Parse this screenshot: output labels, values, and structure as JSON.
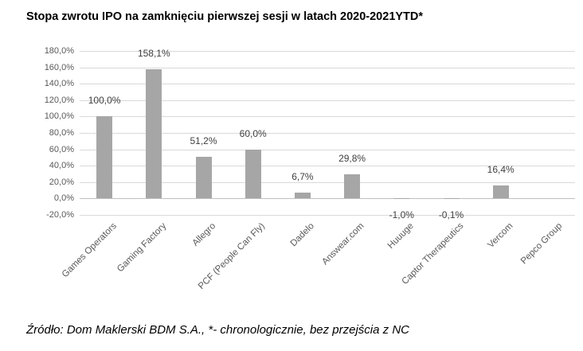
{
  "title": "Stopa zwrotu IPO na zamknięciu pierwszej sesji w latach 2020-2021YTD*",
  "footer": "Źródło: Dom Maklerski BDM S.A., *- chronologicznie, bez przejścia z NC",
  "chart_data": {
    "type": "bar",
    "title": "Stopa zwrotu IPO na zamknięciu pierwszej sesji w latach 2020-2021YTD*",
    "categories": [
      "Games Operators",
      "Gaming Factory",
      "Allegro",
      "PCF (People Can Fly)",
      "Dadelo",
      "Answear.com",
      "Huuuge",
      "Captor Therapeutics",
      "Vercom",
      "Pepco Group"
    ],
    "values": [
      100.0,
      158.1,
      51.2,
      60.0,
      6.7,
      29.8,
      -1.0,
      -0.1,
      16.4,
      null
    ],
    "value_labels": [
      "100,0%",
      "158,1%",
      "51,2%",
      "60,0%",
      "6,7%",
      "29,8%",
      "-1,0%",
      "-0,1%",
      "16,4%",
      ""
    ],
    "y_ticks": [
      "180,0%",
      "160,0%",
      "140,0%",
      "120,0%",
      "100,0%",
      "80,0%",
      "60,0%",
      "40,0%",
      "20,0%",
      "0,0%",
      "-20,0%"
    ],
    "ylim": [
      -20,
      180
    ],
    "tick_step": 20,
    "grid": true,
    "legend": "none",
    "xlabel": "",
    "ylabel": "",
    "colors": {
      "bar": "#a6a6a6",
      "gridline": "#d9d9d9",
      "zero_axis": "#bfbfbf",
      "tick_text": "#595959",
      "value_label_text": "#404040"
    }
  }
}
